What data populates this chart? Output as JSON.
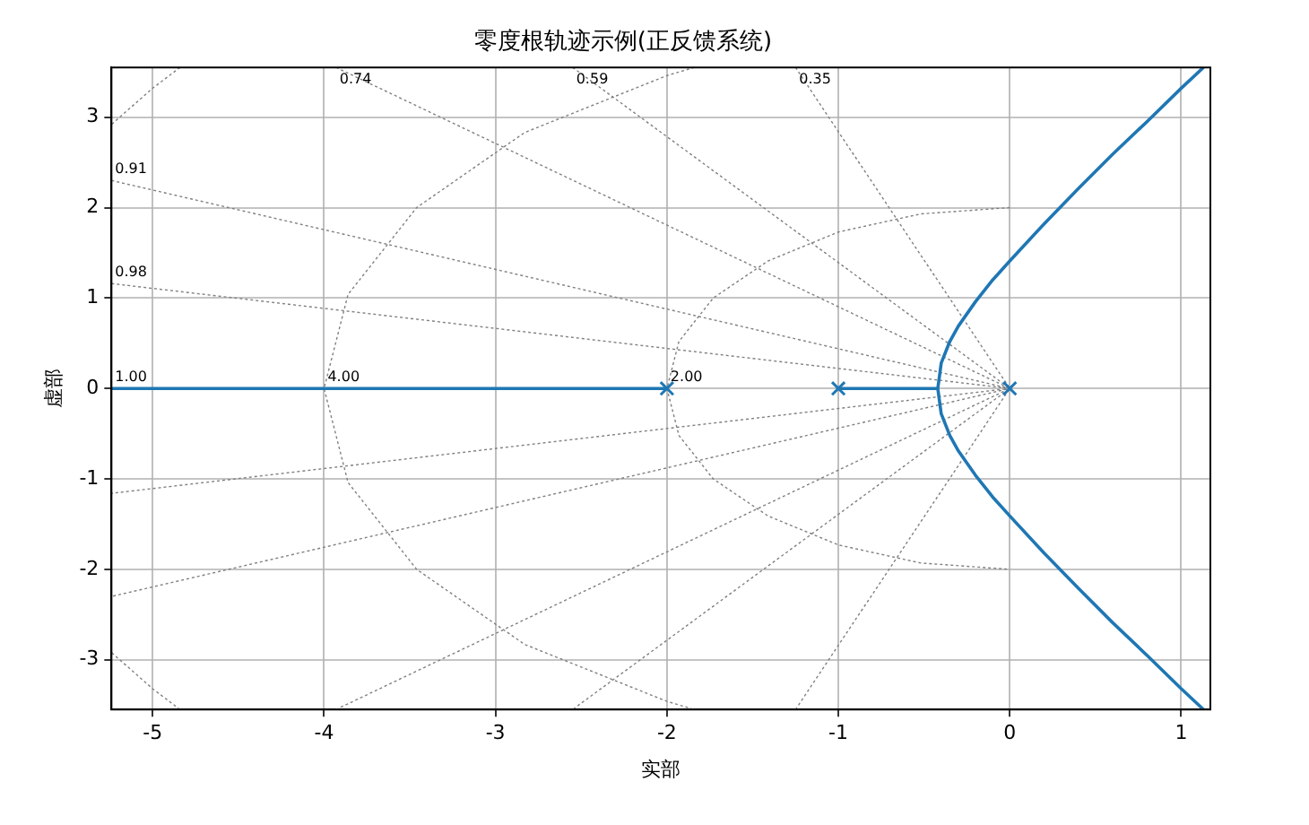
{
  "chart_data": {
    "type": "line",
    "title": "零度根轨迹示例(正反馈系统)",
    "xlabel": "实部",
    "ylabel": "虚部",
    "xlim": [
      -5.24,
      1.17
    ],
    "ylim": [
      -3.55,
      3.55
    ],
    "xticks": [
      -5,
      -4,
      -3,
      -2,
      -1,
      0,
      1
    ],
    "yticks": [
      -3,
      -2,
      -1,
      0,
      1,
      2,
      3
    ],
    "grid": true,
    "legend": false,
    "series": [
      {
        "color": "#808080",
        "line_style": "dotted",
        "x": [
          -5.24,
          0,
          -5.24
        ],
        "values": [
          1.16,
          0,
          -1.16
        ]
      },
      {
        "color": "#808080",
        "line_style": "dotted",
        "x": [
          -5.24,
          0,
          -5.24
        ],
        "values": [
          2.3,
          0,
          -2.3
        ]
      },
      {
        "color": "#808080",
        "line_style": "dotted",
        "x": [
          -3.93,
          0,
          -3.93
        ],
        "values": [
          3.55,
          0,
          -3.55
        ]
      },
      {
        "color": "#808080",
        "line_style": "dotted",
        "x": [
          -2.55,
          0,
          -2.55
        ],
        "values": [
          3.55,
          0,
          -3.55
        ]
      },
      {
        "color": "#808080",
        "line_style": "dotted",
        "x": [
          -1.25,
          0,
          -1.25
        ],
        "values": [
          3.55,
          0,
          -3.55
        ]
      },
      {
        "color": "#808080",
        "line_style": "dotted",
        "x": [
          0,
          -0.52,
          -1,
          -1.41,
          -1.73,
          -1.93,
          -2,
          -1.93,
          -1.73,
          -1.41,
          -1,
          -0.52,
          0
        ],
        "values": [
          2,
          1.93,
          1.73,
          1.41,
          1,
          0.52,
          0,
          -0.52,
          -1,
          -1.41,
          -1.73,
          -1.93,
          -2
        ]
      },
      {
        "color": "#808080",
        "line_style": "dotted",
        "x": [
          -1.84,
          -2,
          -2.83,
          -3.46,
          -3.86,
          -4,
          -3.86,
          -3.46,
          -2.83,
          -2,
          -1.84
        ],
        "values": [
          3.55,
          3.46,
          2.83,
          2,
          1.04,
          0,
          -1.04,
          -2,
          -2.83,
          -3.46,
          -3.55
        ]
      },
      {
        "color": "#808080",
        "line_style": "dotted",
        "x": [
          -4.84,
          -5,
          -5.24
        ],
        "values": [
          3.55,
          3.32,
          2.92
        ]
      },
      {
        "color": "#808080",
        "line_style": "dotted",
        "x": [
          -4.84,
          -5,
          -5.24
        ],
        "values": [
          -3.55,
          -3.32,
          -2.92
        ]
      },
      {
        "color": "#1f77b4",
        "line_style": "solid",
        "x": [
          -5.24,
          -2
        ],
        "values": [
          0,
          0
        ]
      },
      {
        "color": "#1f77b4",
        "line_style": "solid",
        "x": [
          -1,
          -0.42
        ],
        "values": [
          0,
          0
        ]
      },
      {
        "color": "#1f77b4",
        "line_style": "solid",
        "x": [
          1.13,
          1,
          0.8,
          0.6,
          0.4,
          0.2,
          0,
          -0.1,
          -0.2,
          -0.3,
          -0.35,
          -0.4,
          -0.42,
          -0.4,
          -0.35,
          -0.3,
          -0.2,
          -0.1,
          0,
          0.2,
          0.4,
          0.6,
          0.8,
          1,
          1.13
        ],
        "values": [
          3.55,
          3.32,
          2.95,
          2.59,
          2.21,
          1.82,
          1.41,
          1.2,
          0.96,
          0.69,
          0.52,
          0.28,
          0,
          -0.28,
          -0.52,
          -0.69,
          -0.96,
          -1.2,
          -1.41,
          -1.82,
          -2.21,
          -2.59,
          -2.95,
          -3.32,
          -3.55
        ]
      },
      {
        "type": "scatter",
        "color": "#1f77b4",
        "marker": "cross",
        "x": [
          -2,
          -1,
          0
        ],
        "values": [
          0,
          0,
          0
        ]
      }
    ],
    "annotations": [
      {
        "text": "1.00",
        "x": -5.24,
        "y": 0
      },
      {
        "text": "4.00",
        "x": -4,
        "y": 0
      },
      {
        "text": "2.00",
        "x": -2,
        "y": 0
      },
      {
        "text": "0.98",
        "x": -5.24,
        "y": 1.16
      },
      {
        "text": "0.91",
        "x": -5.24,
        "y": 2.3
      },
      {
        "text": "0.74",
        "x": -3.93,
        "y": 3.55
      },
      {
        "text": "0.59",
        "x": -2.55,
        "y": 3.55
      },
      {
        "text": "0.35",
        "x": -1.25,
        "y": 3.55
      }
    ]
  }
}
